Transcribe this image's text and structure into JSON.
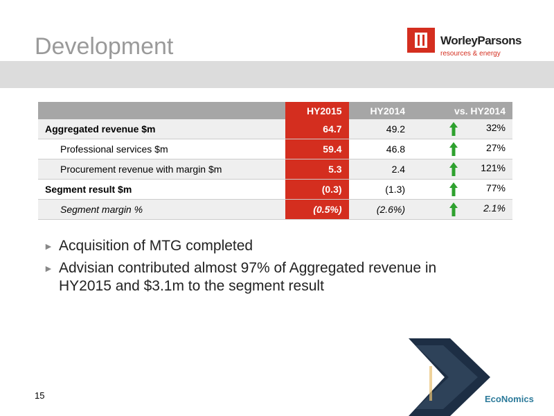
{
  "header": {
    "title": "Development",
    "logo": {
      "name": "WorleyParsons",
      "tagline": "resources & energy"
    }
  },
  "table": {
    "columns": [
      "HY2015",
      "HY2014",
      "vs. HY2014"
    ],
    "rows": [
      [
        "Aggregated revenue $m",
        "64.7",
        "49.2",
        "32%"
      ],
      [
        "Professional services $m",
        "59.4",
        "46.8",
        "27%"
      ],
      [
        "Procurement revenue with margin $m",
        "5.3",
        "2.4",
        "121%"
      ],
      [
        "Segment result $m",
        "(0.3)",
        "(1.3)",
        "77%"
      ],
      [
        "Segment margin %",
        "(0.5%)",
        "(2.6%)",
        "2.1%"
      ]
    ]
  },
  "bullets": [
    "Acquisition of MTG completed",
    "Advisian contributed almost 97% of Aggregated revenue in HY2015 and $3.1m to the segment result"
  ],
  "footer": {
    "page": "15",
    "brand": "EcoNomics"
  }
}
